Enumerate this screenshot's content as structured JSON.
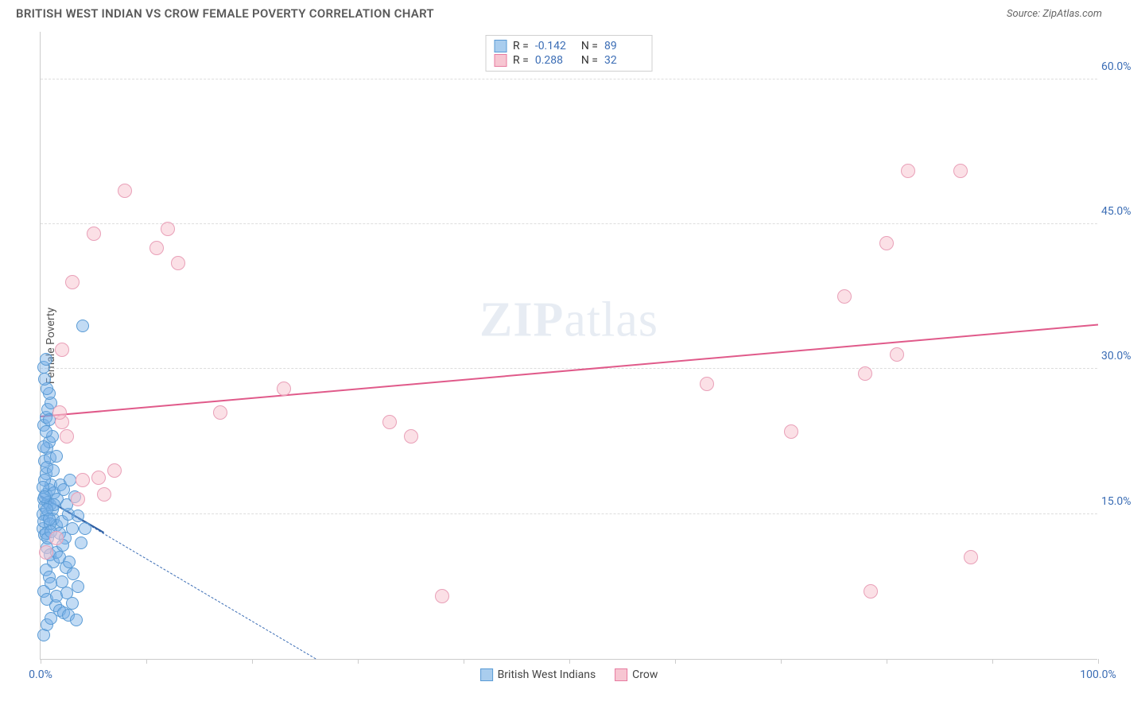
{
  "header": {
    "title": "BRITISH WEST INDIAN VS CROW FEMALE POVERTY CORRELATION CHART",
    "source": "Source: ZipAtlas.com"
  },
  "chart": {
    "type": "scatter",
    "y_axis_label": "Female Poverty",
    "xlim": [
      0,
      100
    ],
    "ylim": [
      0,
      65
    ],
    "x_ticks": [
      0,
      10,
      20,
      30,
      40,
      50,
      60,
      70,
      80,
      90,
      100
    ],
    "x_tick_labels": {
      "0": "0.0%",
      "100": "100.0%"
    },
    "y_ticks": [
      15,
      30,
      45,
      60
    ],
    "y_tick_labels": {
      "15": "15.0%",
      "30": "30.0%",
      "45": "45.0%",
      "60": "60.0%"
    },
    "background_color": "#ffffff",
    "grid_color": "#dddddd",
    "axis_color": "#cccccc",
    "tick_label_color": "#3b6db5",
    "watermark": "ZIPatlas",
    "legend_top": [
      {
        "swatch_fill": "#a9cdee",
        "swatch_border": "#5a9bd5",
        "r_label": "R =",
        "r_value": "-0.142",
        "n_label": "N =",
        "n_value": "89"
      },
      {
        "swatch_fill": "#f7c6d2",
        "swatch_border": "#e77ba0",
        "r_label": "R =",
        "r_value": "0.288",
        "n_label": "N =",
        "n_value": "32"
      }
    ],
    "legend_bottom": [
      {
        "swatch_fill": "#a9cdee",
        "swatch_border": "#5a9bd5",
        "label": "British West Indians"
      },
      {
        "swatch_fill": "#f7c6d2",
        "swatch_border": "#e77ba0",
        "label": "Crow"
      }
    ],
    "series": [
      {
        "name": "British West Indians",
        "marker_fill": "rgba(120,176,230,0.45)",
        "marker_stroke": "#5a9bd5",
        "marker_radius": 8,
        "trend": {
          "x1": 0,
          "y1": 16.8,
          "x2": 26,
          "y2": 0,
          "color": "#3b6db5",
          "dashed": true,
          "width": 1.5
        },
        "trend_solid": {
          "x1": 0,
          "y1": 16.8,
          "x2": 6,
          "y2": 13.0,
          "color": "#2f5fa3",
          "width": 2
        },
        "points": [
          [
            0.3,
            16.5
          ],
          [
            0.5,
            17.0
          ],
          [
            0.4,
            15.8
          ],
          [
            0.7,
            16.2
          ],
          [
            0.8,
            17.5
          ],
          [
            0.6,
            14.8
          ],
          [
            0.9,
            16.0
          ],
          [
            1.0,
            18.0
          ],
          [
            0.5,
            19.2
          ],
          [
            0.4,
            20.5
          ],
          [
            0.6,
            21.8
          ],
          [
            0.8,
            22.5
          ],
          [
            1.1,
            23.0
          ],
          [
            0.3,
            24.2
          ],
          [
            0.5,
            25.0
          ],
          [
            0.7,
            25.8
          ],
          [
            0.2,
            13.5
          ],
          [
            0.4,
            12.8
          ],
          [
            0.6,
            11.5
          ],
          [
            0.9,
            10.8
          ],
          [
            1.2,
            10.0
          ],
          [
            0.5,
            9.2
          ],
          [
            0.8,
            8.5
          ],
          [
            1.0,
            7.8
          ],
          [
            0.3,
            7.0
          ],
          [
            0.6,
            6.2
          ],
          [
            1.4,
            5.5
          ],
          [
            1.8,
            5.0
          ],
          [
            2.2,
            4.8
          ],
          [
            2.6,
            4.5
          ],
          [
            3.0,
            5.8
          ],
          [
            3.4,
            4.0
          ],
          [
            1.2,
            14.5
          ],
          [
            1.5,
            13.8
          ],
          [
            1.8,
            13.0
          ],
          [
            2.0,
            14.2
          ],
          [
            2.3,
            12.5
          ],
          [
            2.6,
            15.0
          ],
          [
            3.0,
            13.5
          ],
          [
            3.5,
            14.8
          ],
          [
            1.0,
            26.5
          ],
          [
            0.8,
            27.5
          ],
          [
            0.6,
            28.0
          ],
          [
            0.4,
            29.0
          ],
          [
            0.3,
            30.2
          ],
          [
            0.5,
            31.0
          ],
          [
            0.8,
            24.8
          ],
          [
            1.3,
            17.2
          ],
          [
            1.6,
            16.5
          ],
          [
            1.9,
            18.0
          ],
          [
            2.2,
            17.5
          ],
          [
            2.5,
            16.0
          ],
          [
            2.8,
            18.5
          ],
          [
            3.2,
            16.8
          ],
          [
            0.2,
            15.0
          ],
          [
            0.3,
            14.2
          ],
          [
            0.5,
            13.0
          ],
          [
            0.7,
            12.5
          ],
          [
            0.9,
            14.0
          ],
          [
            1.1,
            15.5
          ],
          [
            1.3,
            16.0
          ],
          [
            1.5,
            11.0
          ],
          [
            1.8,
            10.5
          ],
          [
            2.1,
            11.8
          ],
          [
            2.4,
            9.5
          ],
          [
            2.7,
            10.0
          ],
          [
            3.1,
            8.8
          ],
          [
            3.5,
            7.5
          ],
          [
            0.4,
            18.5
          ],
          [
            0.6,
            19.8
          ],
          [
            0.9,
            20.8
          ],
          [
            1.2,
            19.5
          ],
          [
            1.5,
            21.0
          ],
          [
            0.3,
            22.0
          ],
          [
            0.5,
            23.5
          ],
          [
            4.0,
            34.5
          ],
          [
            0.3,
            2.5
          ],
          [
            0.6,
            3.5
          ],
          [
            1.0,
            4.2
          ],
          [
            1.5,
            6.5
          ],
          [
            2.0,
            8.0
          ],
          [
            2.5,
            6.8
          ],
          [
            3.8,
            12.0
          ],
          [
            4.2,
            13.5
          ],
          [
            0.2,
            17.8
          ],
          [
            0.4,
            16.8
          ],
          [
            0.6,
            15.5
          ],
          [
            0.8,
            14.5
          ],
          [
            1.0,
            13.2
          ]
        ]
      },
      {
        "name": "Crow",
        "marker_fill": "rgba(247,198,210,0.55)",
        "marker_stroke": "#e9a0b8",
        "marker_radius": 9,
        "trend": {
          "x1": 0,
          "y1": 25.0,
          "x2": 100,
          "y2": 34.5,
          "color": "#e05a8a",
          "dashed": false,
          "width": 2
        },
        "points": [
          [
            2.0,
            24.5
          ],
          [
            2.5,
            23.0
          ],
          [
            1.8,
            25.5
          ],
          [
            3.5,
            16.5
          ],
          [
            4.0,
            18.5
          ],
          [
            5.5,
            18.8
          ],
          [
            6.0,
            17.0
          ],
          [
            7.0,
            19.5
          ],
          [
            8.0,
            48.5
          ],
          [
            5.0,
            44.0
          ],
          [
            3.0,
            39.0
          ],
          [
            12.0,
            44.5
          ],
          [
            11.0,
            42.5
          ],
          [
            13.0,
            41.0
          ],
          [
            2.0,
            32.0
          ],
          [
            0.5,
            11.0
          ],
          [
            17.0,
            25.5
          ],
          [
            23.0,
            28.0
          ],
          [
            33.0,
            24.5
          ],
          [
            35.0,
            23.0
          ],
          [
            38.0,
            6.5
          ],
          [
            63.0,
            28.5
          ],
          [
            71.0,
            23.5
          ],
          [
            76.0,
            37.5
          ],
          [
            78.0,
            29.5
          ],
          [
            80.0,
            43.0
          ],
          [
            81.0,
            31.5
          ],
          [
            82.0,
            50.5
          ],
          [
            87.0,
            50.5
          ],
          [
            88.0,
            10.5
          ],
          [
            78.5,
            7.0
          ],
          [
            1.5,
            12.5
          ]
        ]
      }
    ]
  }
}
